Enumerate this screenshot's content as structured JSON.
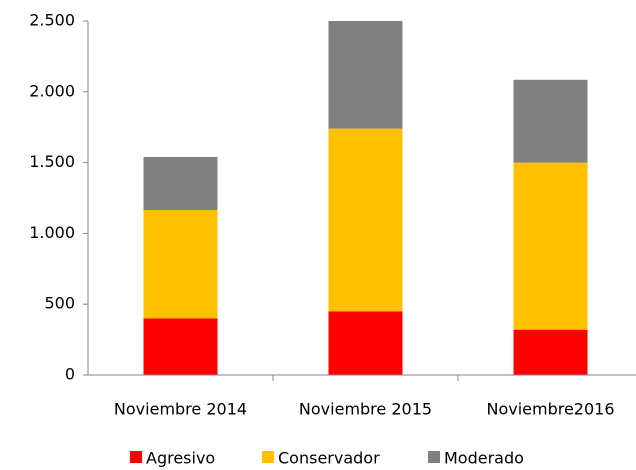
{
  "chart_data": {
    "type": "stacked_bar",
    "categories": [
      "Noviembre 2014",
      "Noviembre 2015",
      "Noviembre2016"
    ],
    "series": [
      {
        "name": "Agresivo",
        "color": "#ff0000",
        "values": [
          400,
          450,
          320
        ]
      },
      {
        "name": "Conservador",
        "color": "#ffc000",
        "values": [
          765,
          1290,
          1180
        ]
      },
      {
        "name": "Moderado",
        "color": "#808080",
        "values": [
          375,
          760,
          585
        ]
      }
    ],
    "ylim": [
      0,
      2500
    ],
    "yticks": [
      0,
      500,
      {
        "value": 1000,
        "label": "1.000"
      },
      {
        "value": 1500,
        "label": "1.500"
      },
      {
        "value": 2000,
        "label": "2.000"
      },
      {
        "value": 2500,
        "label": "2.500"
      }
    ],
    "legend": "bottom"
  }
}
